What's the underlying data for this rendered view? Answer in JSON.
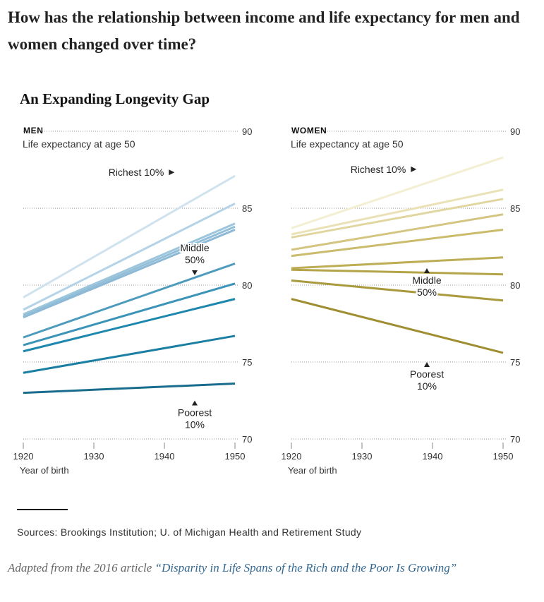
{
  "question": "How has the relationship between income and life expectancy for men and women changed over time?",
  "chart_title": "An Expanding Longevity Gap",
  "sources": "Sources: Brookings Institution; U. of Michigan Health and Retirement Study",
  "credit": {
    "prefix": "Adapted from the 2016 article ",
    "link_text": "“Disparity in Life Spans of the Rich and the Poor Is Growing”"
  },
  "colors": {
    "men": [
      "#cfe2ee",
      "#b5d3e7",
      "#9dc6dd",
      "#93bfd8",
      "#8db9d6",
      "#4e9cbd",
      "#3b94b8",
      "#1e87ad",
      "#1b7fa3",
      "#186c8e",
      "#175c75"
    ],
    "women": [
      "#f3efd3",
      "#eae2b6",
      "#e1d6a0",
      "#d4c682",
      "#cbbb6c",
      "#bdad55",
      "#b3a449",
      "#aa9a3e",
      "#9f8f32",
      "#95872c",
      "#8a7b24"
    ]
  },
  "chart_data": [
    {
      "type": "line",
      "panel": "MEN",
      "subtitle": "Life expectancy at age 50",
      "xlabel": "Year of birth",
      "x": [
        1920,
        1950
      ],
      "x_ticks": [
        "1920",
        "1930",
        "1940",
        "1950"
      ],
      "y_ticks": [
        "70",
        "75",
        "80",
        "85",
        "90"
      ],
      "ylim": [
        70,
        90
      ],
      "grid": true,
      "series": [
        {
          "values": [
            79.2,
            87.1
          ]
        },
        {
          "values": [
            78.4,
            85.3
          ]
        },
        {
          "values": [
            78.1,
            84.0
          ]
        },
        {
          "values": [
            78.0,
            83.8
          ]
        },
        {
          "values": [
            77.9,
            83.6
          ]
        },
        {
          "values": [
            76.6,
            81.4
          ]
        },
        {
          "values": [
            76.1,
            80.1
          ]
        },
        {
          "values": [
            75.7,
            79.1
          ]
        },
        {
          "values": [
            74.3,
            76.7
          ]
        },
        {
          "values": [
            73.0,
            73.6
          ]
        }
      ],
      "annotations": [
        {
          "text": [
            "Richest 10%"
          ],
          "arrow": "right",
          "x": 1936,
          "y": 87.1
        },
        {
          "text": [
            "Middle",
            "50%"
          ],
          "arrow": "down",
          "x": 1944.3,
          "y": 82.2
        },
        {
          "text": [
            "Poorest",
            "10%"
          ],
          "arrow": "up",
          "x": 1944.3,
          "y": 72.5
        }
      ]
    },
    {
      "type": "line",
      "panel": "WOMEN",
      "subtitle": "Life expectancy at age 50",
      "xlabel": "Year of birth",
      "x": [
        1920,
        1950
      ],
      "x_ticks": [
        "1920",
        "1930",
        "1940",
        "1950"
      ],
      "y_ticks": [
        "70",
        "75",
        "80",
        "85",
        "90"
      ],
      "ylim": [
        70,
        90
      ],
      "grid": true,
      "series": [
        {
          "values": [
            83.7,
            88.3
          ]
        },
        {
          "values": [
            83.3,
            86.2
          ]
        },
        {
          "values": [
            83.1,
            85.6
          ]
        },
        {
          "values": [
            82.3,
            84.6
          ]
        },
        {
          "values": [
            81.9,
            83.6
          ]
        },
        {
          "values": [
            81.1,
            81.8
          ]
        },
        {
          "values": [
            81.0,
            80.7
          ]
        },
        {
          "values": [
            80.3,
            79.0
          ]
        },
        {
          "values": [
            79.1,
            75.6
          ]
        }
      ],
      "annotations": [
        {
          "text": [
            "Richest 10%"
          ],
          "arrow": "right",
          "x": 1932.3,
          "y": 87.3
        },
        {
          "text": [
            "Middle",
            "50%"
          ],
          "arrow": "up",
          "x": 1939.2,
          "y": 81.1
        },
        {
          "text": [
            "Poorest",
            "10%"
          ],
          "arrow": "up",
          "x": 1939.2,
          "y": 75.0
        }
      ]
    }
  ]
}
